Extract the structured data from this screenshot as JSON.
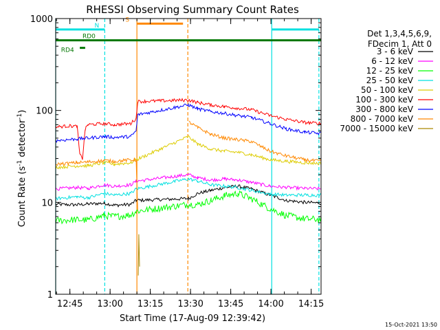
{
  "chart_data": {
    "type": "line",
    "title": "RHESSI Observing Summary Count Rates",
    "xlabel": "Start Time (17-Aug-09 12:39:42)",
    "ylabel": "Count Rate (s",
    "ylabel_sup": "-1",
    "ylabel_mid": " detector",
    "ylabel_sup2": "-1",
    "ylabel_end": ")",
    "x_unit": "minutes since 12:39:42",
    "xlim": [
      0,
      99
    ],
    "ylim": [
      1,
      1000
    ],
    "yscale": "log",
    "y_ticks": [
      {
        "value": 1,
        "label": "1"
      },
      {
        "value": 10,
        "label": "10"
      },
      {
        "value": 100,
        "label": "100"
      },
      {
        "value": 1000,
        "label": "1000"
      }
    ],
    "x_ticks": [
      {
        "value": 5.3,
        "label": "12:45"
      },
      {
        "value": 20.3,
        "label": "13:00"
      },
      {
        "value": 35.3,
        "label": "13:15"
      },
      {
        "value": 50.3,
        "label": "13:30"
      },
      {
        "value": 65.3,
        "label": "13:45"
      },
      {
        "value": 80.3,
        "label": "14:00"
      },
      {
        "value": 95.3,
        "label": "14:15"
      }
    ],
    "legend_header": [
      "Det 1,3,4,5,6,9,",
      "FDecim 1, Att 0"
    ],
    "legend_position": "right",
    "timestamp": "15-Oct-2021 13:50",
    "series": [
      {
        "name": "3 - 6 keV",
        "color": "#000000",
        "points": [
          [
            0,
            9.5
          ],
          [
            8,
            9.4
          ],
          [
            12,
            9.6
          ],
          [
            18,
            9.8
          ],
          [
            22,
            9.3
          ],
          [
            28,
            9.5
          ],
          [
            30,
            10.5
          ],
          [
            49.5,
            11
          ],
          [
            53,
            12.5
          ],
          [
            58,
            13.5
          ],
          [
            63,
            14.5
          ],
          [
            68,
            15
          ],
          [
            73,
            14
          ],
          [
            80,
            12
          ],
          [
            86,
            10.5
          ],
          [
            93,
            10
          ],
          [
            99,
            9.8
          ]
        ]
      },
      {
        "name": "6 - 12 keV",
        "color": "#ff00ff",
        "points": [
          [
            0,
            14
          ],
          [
            8,
            14.5
          ],
          [
            12,
            14.2
          ],
          [
            18,
            15.5
          ],
          [
            22,
            15
          ],
          [
            28,
            15.5
          ],
          [
            30,
            17
          ],
          [
            49.5,
            20
          ],
          [
            53,
            18.5
          ],
          [
            58,
            17.5
          ],
          [
            63,
            18
          ],
          [
            68,
            17.5
          ],
          [
            73,
            16.5
          ],
          [
            80,
            15
          ],
          [
            86,
            14.5
          ],
          [
            93,
            14.2
          ],
          [
            99,
            14
          ]
        ]
      },
      {
        "name": "12 - 25 keV",
        "color": "#00ff00",
        "points": [
          [
            0,
            6.3
          ],
          [
            8,
            6.5
          ],
          [
            12,
            6.4
          ],
          [
            18,
            7.2
          ],
          [
            22,
            7
          ],
          [
            28,
            7.3
          ],
          [
            30,
            8
          ],
          [
            49.5,
            9.5
          ],
          [
            53,
            9.5
          ],
          [
            58,
            10.5
          ],
          [
            63,
            11.8
          ],
          [
            68,
            12.5
          ],
          [
            73,
            11
          ],
          [
            80,
            8.5
          ],
          [
            86,
            7.2
          ],
          [
            93,
            6.6
          ],
          [
            99,
            6.5
          ]
        ]
      },
      {
        "name": "25 - 50 keV",
        "color": "#00e0e0",
        "points": [
          [
            0,
            11
          ],
          [
            8,
            11.5
          ],
          [
            12,
            11.2
          ],
          [
            18,
            12.5
          ],
          [
            22,
            12
          ],
          [
            28,
            12.5
          ],
          [
            30,
            14
          ],
          [
            49.5,
            18
          ],
          [
            53,
            17
          ],
          [
            58,
            15.5
          ],
          [
            63,
            15
          ],
          [
            68,
            14.5
          ],
          [
            73,
            13.5
          ],
          [
            80,
            12.3
          ],
          [
            86,
            12
          ],
          [
            93,
            12
          ],
          [
            99,
            12
          ]
        ]
      },
      {
        "name": "50 - 100 keV",
        "color": "#ddcc00",
        "points": [
          [
            0,
            24
          ],
          [
            8,
            25
          ],
          [
            12,
            25
          ],
          [
            18,
            27
          ],
          [
            22,
            26
          ],
          [
            28,
            27
          ],
          [
            30,
            29
          ],
          [
            49.5,
            52
          ],
          [
            53,
            43
          ],
          [
            58,
            38
          ],
          [
            63,
            36
          ],
          [
            68,
            35
          ],
          [
            73,
            33
          ],
          [
            80,
            29
          ],
          [
            86,
            28
          ],
          [
            93,
            27
          ],
          [
            99,
            26.5
          ]
        ]
      },
      {
        "name": "100 - 300 keV",
        "color": "#ff0000",
        "points": [
          [
            0,
            66
          ],
          [
            5,
            68
          ],
          [
            8,
            67
          ],
          [
            9,
            33
          ],
          [
            10,
            30
          ],
          [
            11,
            62
          ],
          [
            12,
            70
          ],
          [
            18,
            72
          ],
          [
            22,
            70
          ],
          [
            28,
            72
          ],
          [
            30,
            82
          ],
          [
            30.6,
            125
          ],
          [
            49.5,
            130
          ],
          [
            53,
            122
          ],
          [
            58,
            115
          ],
          [
            63,
            110
          ],
          [
            68,
            106
          ],
          [
            73,
            102
          ],
          [
            80,
            88
          ],
          [
            86,
            80
          ],
          [
            93,
            74
          ],
          [
            99,
            72
          ]
        ]
      },
      {
        "name": "300 - 800 keV",
        "color": "#0000ff",
        "points": [
          [
            0,
            47
          ],
          [
            8,
            49
          ],
          [
            12,
            50
          ],
          [
            18,
            52
          ],
          [
            22,
            51
          ],
          [
            28,
            52
          ],
          [
            30,
            60
          ],
          [
            30.6,
            90
          ],
          [
            49.5,
            115
          ],
          [
            53,
            104
          ],
          [
            58,
            97
          ],
          [
            63,
            93
          ],
          [
            68,
            88
          ],
          [
            73,
            84
          ],
          [
            80,
            72
          ],
          [
            86,
            63
          ],
          [
            93,
            58
          ],
          [
            99,
            56
          ]
        ]
      },
      {
        "name": "800 - 7000 keV",
        "color": "#ff8800",
        "points": [
          [
            0,
            26
          ],
          [
            8,
            27
          ],
          [
            12,
            27.5
          ],
          [
            18,
            28.5
          ],
          [
            22,
            28
          ],
          [
            28,
            29
          ],
          [
            30,
            29
          ],
          [
            30.6,
            8
          ],
          [
            31,
            1
          ],
          [
            49.5,
            1
          ],
          [
            49.7,
            75
          ],
          [
            53,
            65
          ],
          [
            58,
            55
          ],
          [
            63,
            50
          ],
          [
            68,
            48
          ],
          [
            73,
            46
          ],
          [
            80,
            36
          ],
          [
            86,
            32
          ],
          [
            93,
            29
          ],
          [
            99,
            28
          ]
        ]
      },
      {
        "name": "7000 - 15000 keV",
        "color": "#aa8800",
        "points": [
          [
            30.8,
            1.6
          ],
          [
            31,
            4.5
          ],
          [
            31.3,
            2
          ]
        ]
      }
    ],
    "attenuator_lines": [
      {
        "x": 0,
        "color": "#00e0e0",
        "style": "solid"
      },
      {
        "x": 18.3,
        "color": "#00e0e0",
        "style": "dashed"
      },
      {
        "x": 30.3,
        "color": "#ff8800",
        "style": "solid"
      },
      {
        "x": 49.3,
        "color": "#ff8800",
        "style": "dashed"
      },
      {
        "x": 80.6,
        "color": "#00e0e0",
        "style": "solid"
      },
      {
        "x": 98.2,
        "color": "#00e0e0",
        "style": "dashed"
      }
    ],
    "flag_bars": [
      {
        "label": "N",
        "label_x": 14.5,
        "x0": 0,
        "x1": 18.3,
        "y": 760,
        "color": "#00e0e0"
      },
      {
        "label": "",
        "label_x": 0,
        "x0": 80.6,
        "x1": 98.2,
        "y": 760,
        "color": "#00e0e0"
      },
      {
        "label": "S",
        "label_x": 26,
        "x0": 30.3,
        "x1": 47.5,
        "y": 880,
        "color": "#ff8800"
      },
      {
        "label": "RD0",
        "label_x": 10,
        "x0": 0,
        "x1": 99,
        "y": 580,
        "color": "#007700"
      },
      {
        "label": "RD4",
        "label_x": 2,
        "x0": 9,
        "x1": 11,
        "y": 480,
        "color": "#007700"
      }
    ]
  }
}
